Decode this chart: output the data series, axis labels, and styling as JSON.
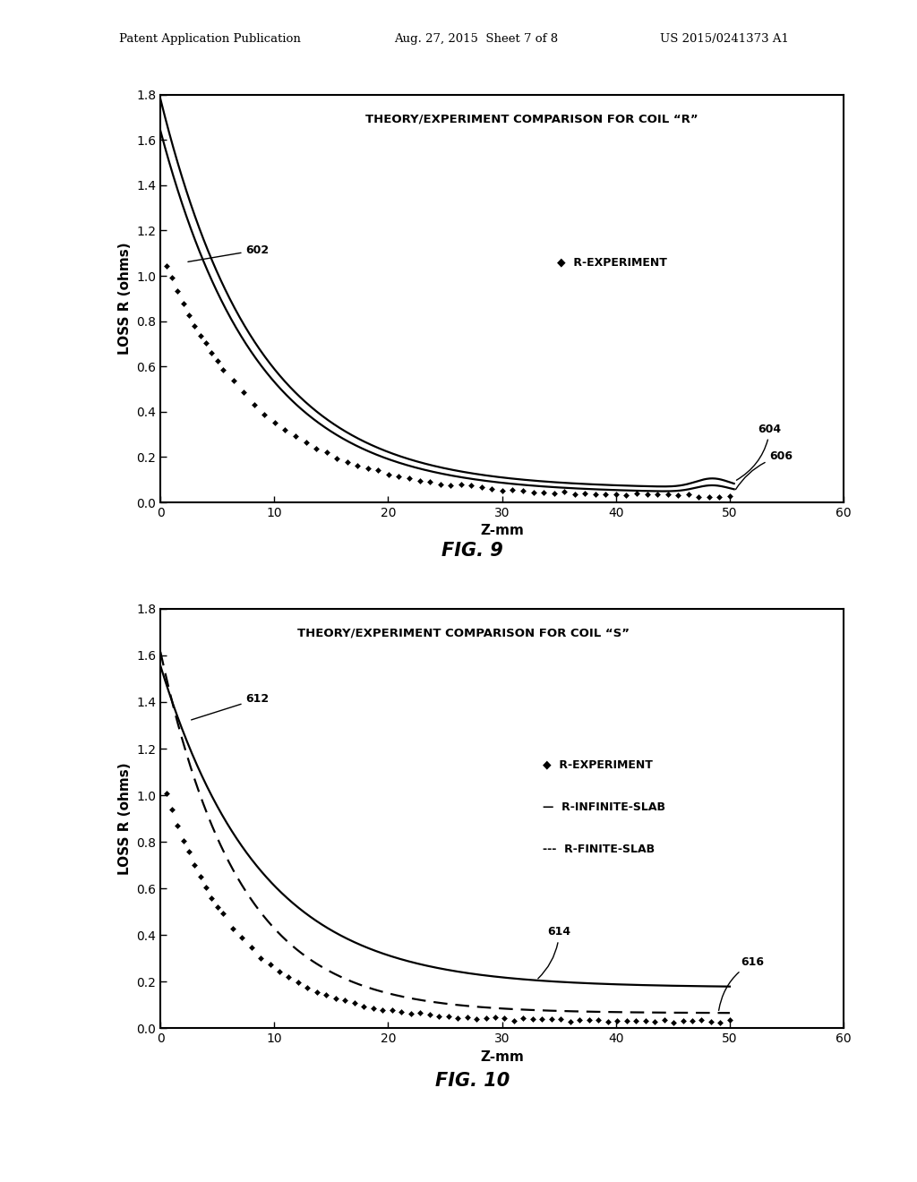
{
  "page_header_left": "Patent Application Publication",
  "page_header_mid": "Aug. 27, 2015  Sheet 7 of 8",
  "page_header_right": "US 2015/0241373 A1",
  "fig9": {
    "title": "THEORY/EXPERIMENT COMPARISON FOR COIL “R”",
    "xlabel": "Z-mm",
    "ylabel": "LOSS R (ohms)",
    "xlim": [
      0,
      60
    ],
    "ylim": [
      0,
      1.8
    ],
    "yticks": [
      0,
      0.2,
      0.4,
      0.6,
      0.8,
      1.0,
      1.2,
      1.4,
      1.6,
      1.8
    ],
    "xticks": [
      0,
      10,
      20,
      30,
      40,
      50,
      60
    ],
    "legend_label": "◆  R-EXPERIMENT",
    "ann602": "602",
    "ann604": "604",
    "ann606": "606",
    "fig_label": "FIG. 9"
  },
  "fig10": {
    "title": "THEORY/EXPERIMENT COMPARISON FOR COIL “S”",
    "xlabel": "Z-mm",
    "ylabel": "LOSS R (ohms)",
    "xlim": [
      0,
      60
    ],
    "ylim": [
      0,
      1.8
    ],
    "yticks": [
      0,
      0.2,
      0.4,
      0.6,
      0.8,
      1.0,
      1.2,
      1.4,
      1.6,
      1.8
    ],
    "xticks": [
      0,
      10,
      20,
      30,
      40,
      50,
      60
    ],
    "legend_exp": "◆  R-EXPERIMENT",
    "legend_inf": "—  R-INFINITE-SLAB",
    "legend_fin": "---  R-FINITE-SLAB",
    "ann612": "612",
    "ann614": "614",
    "ann616": "616",
    "fig_label": "FIG. 10"
  },
  "bg": "#ffffff"
}
